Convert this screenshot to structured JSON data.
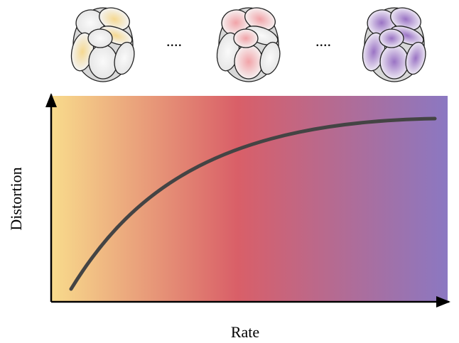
{
  "axes": {
    "x_label": "Rate",
    "y_label": "Distortion"
  },
  "separators": [
    "....",
    "...."
  ]
}
